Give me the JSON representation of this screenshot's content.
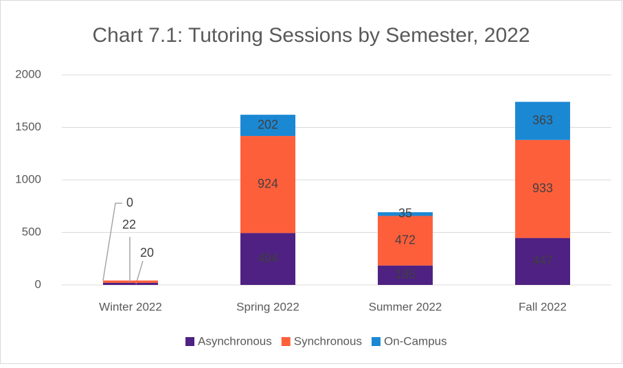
{
  "chart_data": {
    "type": "stacked_bar",
    "title": "Chart 7.1: Tutoring Sessions by Semester, 2022",
    "categories": [
      "Winter 2022",
      "Spring 2022",
      "Summer 2022",
      "Fall 2022"
    ],
    "series": [
      {
        "name": "Asynchronous",
        "color": "#4e2182",
        "values": [
          20,
          494,
          185,
          447
        ]
      },
      {
        "name": "Synchronous",
        "color": "#fe5f3b",
        "values": [
          22,
          924,
          472,
          933
        ]
      },
      {
        "name": "On-Campus",
        "color": "#1b88d4",
        "values": [
          0,
          202,
          35,
          363
        ]
      }
    ],
    "ylim": [
      0,
      2000
    ],
    "yticks": [
      0,
      500,
      1000,
      1500,
      2000
    ],
    "grid": true,
    "legend": "bottom"
  }
}
